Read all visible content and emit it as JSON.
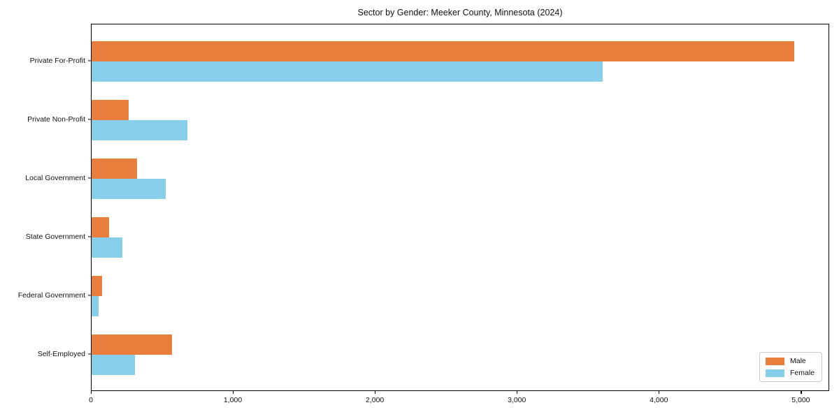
{
  "title": "Sector by Gender: Meeker County, Minnesota (2024)",
  "chart_data": {
    "type": "bar",
    "orientation": "horizontal",
    "title": "Sector by Gender: Meeker County, Minnesota (2024)",
    "xlabel": "",
    "ylabel": "",
    "categories": [
      "Private For-Profit",
      "Private Non-Profit",
      "Local Government",
      "State Government",
      "Federal Government",
      "Self-Employed"
    ],
    "series": [
      {
        "name": "Male",
        "color": "#e87d3c",
        "values": [
          4950,
          260,
          320,
          125,
          75,
          565
        ]
      },
      {
        "name": "Female",
        "color": "#87ceeb",
        "values": [
          3600,
          675,
          520,
          215,
          50,
          305
        ]
      }
    ],
    "xlim": [
      0,
      5200
    ],
    "xticks": [
      0,
      1000,
      2000,
      3000,
      4000,
      5000
    ],
    "xtick_labels": [
      "0",
      "1,000",
      "2,000",
      "3,000",
      "4,000",
      "5,000"
    ],
    "grid": false,
    "legend_position": "lower right",
    "bar_height_fraction": 0.35
  },
  "colors": {
    "male": "#e87d3c",
    "female": "#87ceeb",
    "spine": "#000000",
    "background": "#ffffff",
    "legend_border": "#cccccc"
  }
}
